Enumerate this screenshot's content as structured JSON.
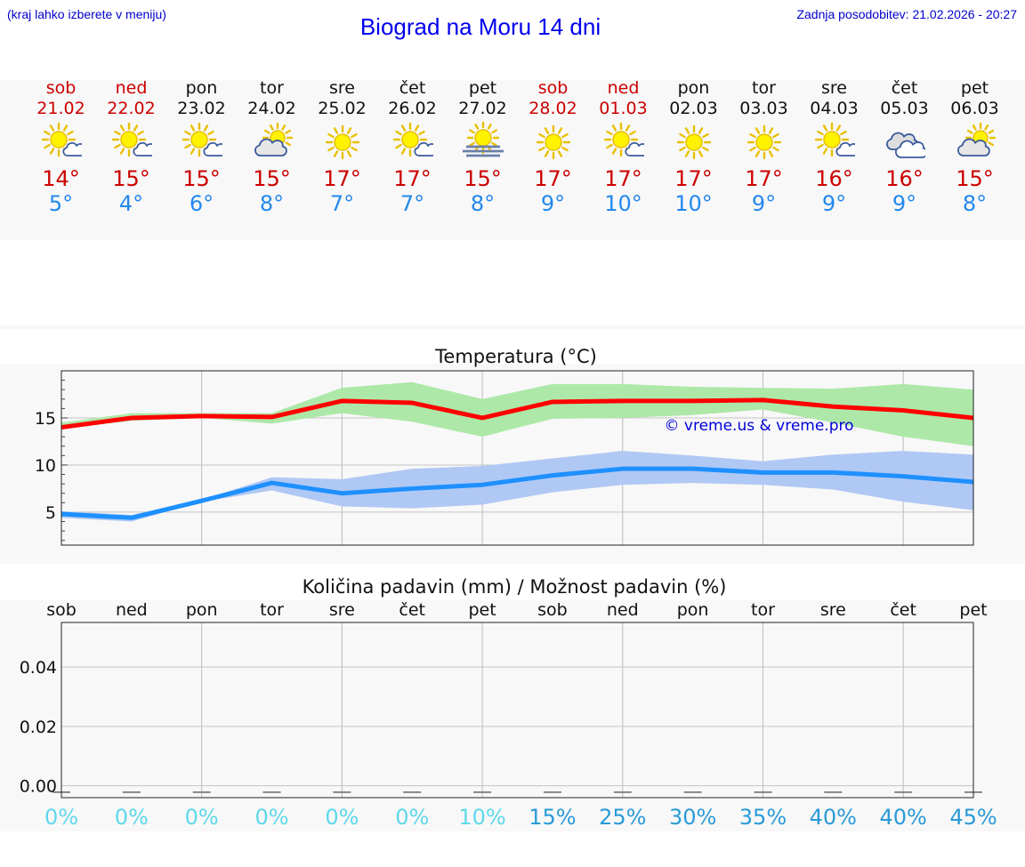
{
  "header": {
    "hint": "(kraj lahko izberete v meniju)",
    "title": "Biograd na Moru 14 dni",
    "updated": "Zadnja posodobitev: 21.02.2026 - 20:27"
  },
  "colors": {
    "weekend": "#cc0000",
    "weekday": "#111111",
    "max_temp": "#cc0000",
    "min_temp": "#2288ee",
    "max_band": "#ade8a8",
    "min_band": "#b0c8f4",
    "max_line": "#ff0000",
    "min_line": "#1e90ff"
  },
  "days": [
    {
      "name": "sob",
      "date": "21.02",
      "weekend": true,
      "icon": "sun-cloud-icon",
      "tmax": "14°",
      "tmin": "5°"
    },
    {
      "name": "ned",
      "date": "22.02",
      "weekend": true,
      "icon": "sun-cloud-icon",
      "tmax": "15°",
      "tmin": "4°"
    },
    {
      "name": "pon",
      "date": "23.02",
      "weekend": false,
      "icon": "sun-cloud-icon",
      "tmax": "15°",
      "tmin": "6°"
    },
    {
      "name": "tor",
      "date": "24.02",
      "weekend": false,
      "icon": "cloud-sun-icon",
      "tmax": "15°",
      "tmin": "8°"
    },
    {
      "name": "sre",
      "date": "25.02",
      "weekend": false,
      "icon": "sun-icon",
      "tmax": "17°",
      "tmin": "7°"
    },
    {
      "name": "čet",
      "date": "26.02",
      "weekend": false,
      "icon": "sun-cloud-icon",
      "tmax": "17°",
      "tmin": "7°"
    },
    {
      "name": "pet",
      "date": "27.02",
      "weekend": false,
      "icon": "sun-fog-icon",
      "tmax": "15°",
      "tmin": "8°"
    },
    {
      "name": "sob",
      "date": "28.02",
      "weekend": true,
      "icon": "sun-icon",
      "tmax": "17°",
      "tmin": "9°"
    },
    {
      "name": "ned",
      "date": "01.03",
      "weekend": true,
      "icon": "sun-cloud-icon",
      "tmax": "17°",
      "tmin": "10°"
    },
    {
      "name": "pon",
      "date": "02.03",
      "weekend": false,
      "icon": "sun-icon",
      "tmax": "17°",
      "tmin": "10°"
    },
    {
      "name": "tor",
      "date": "03.03",
      "weekend": false,
      "icon": "sun-icon",
      "tmax": "17°",
      "tmin": "9°"
    },
    {
      "name": "sre",
      "date": "04.03",
      "weekend": false,
      "icon": "sun-cloud-icon",
      "tmax": "16°",
      "tmin": "9°"
    },
    {
      "name": "čet",
      "date": "05.03",
      "weekend": false,
      "icon": "cloudy-icon",
      "tmax": "16°",
      "tmin": "9°"
    },
    {
      "name": "pet",
      "date": "06.03",
      "weekend": false,
      "icon": "cloud-sun-icon",
      "tmax": "15°",
      "tmin": "8°"
    }
  ],
  "chart_data": [
    {
      "type": "line",
      "title": "Temperatura (°C)",
      "xlabel": "",
      "ylabel": "",
      "categories": [
        "21.02",
        "22.02",
        "23.02",
        "24.02",
        "25.02",
        "26.02",
        "27.02",
        "28.02",
        "01.03",
        "02.03",
        "03.03",
        "04.03",
        "05.03",
        "06.03"
      ],
      "ylim": [
        1.5,
        20
      ],
      "yticks": [
        5,
        10,
        15
      ],
      "grid": true,
      "watermark": "© vreme.us & vreme.pro",
      "series": [
        {
          "name": "max",
          "values": [
            14,
            15,
            15.2,
            15.1,
            16.8,
            16.6,
            15,
            16.7,
            16.8,
            16.8,
            16.9,
            16.2,
            15.8,
            15
          ]
        },
        {
          "name": "max-upper",
          "values": [
            14.5,
            15.5,
            15.5,
            15.5,
            18.2,
            18.8,
            17,
            18.6,
            18.6,
            18.3,
            18.2,
            18.1,
            18.6,
            18
          ]
        },
        {
          "name": "max-lower",
          "values": [
            13.8,
            14.7,
            15,
            14.4,
            15.5,
            14.6,
            13,
            14.9,
            15,
            15.3,
            15.9,
            14.5,
            13,
            12
          ],
          "note": "green band"
        },
        {
          "name": "min",
          "values": [
            4.8,
            4.4,
            6.2,
            8.1,
            7,
            7.5,
            7.9,
            8.9,
            9.6,
            9.6,
            9.2,
            9.2,
            8.8,
            8.2
          ]
        },
        {
          "name": "min-upper",
          "values": [
            5.1,
            4.7,
            6.3,
            8.7,
            8.5,
            9.6,
            9.9,
            10.7,
            11.5,
            11,
            10.4,
            11.1,
            11.5,
            11.1
          ]
        },
        {
          "name": "min-lower",
          "values": [
            4.4,
            4.0,
            6.1,
            7.3,
            5.6,
            5.4,
            5.8,
            7.1,
            7.9,
            8.1,
            7.9,
            7.4,
            6.1,
            5.2
          ],
          "note": "blue band"
        }
      ]
    },
    {
      "type": "bar",
      "title": "Količina padavin (mm) / Možnost padavin (%)",
      "categories": [
        "sob",
        "ned",
        "pon",
        "tor",
        "sre",
        "čet",
        "pet",
        "sob",
        "ned",
        "pon",
        "tor",
        "sre",
        "čet",
        "pet"
      ],
      "values": [
        0,
        0,
        0,
        0,
        0,
        0,
        0,
        0,
        0,
        0,
        0,
        0,
        0,
        0
      ],
      "ylim": [
        -0.004,
        0.055
      ],
      "yticks": [
        "0.00",
        "0.02",
        "0.04"
      ],
      "ytick_values": [
        0,
        0.02,
        0.04
      ],
      "grid": true,
      "probabilities": [
        "0%",
        "0%",
        "0%",
        "0%",
        "0%",
        "0%",
        "10%",
        "15%",
        "25%",
        "30%",
        "35%",
        "40%",
        "40%",
        "45%"
      ],
      "probability_values": [
        0,
        0,
        0,
        0,
        0,
        0,
        10,
        15,
        25,
        30,
        35,
        40,
        40,
        45
      ]
    }
  ]
}
